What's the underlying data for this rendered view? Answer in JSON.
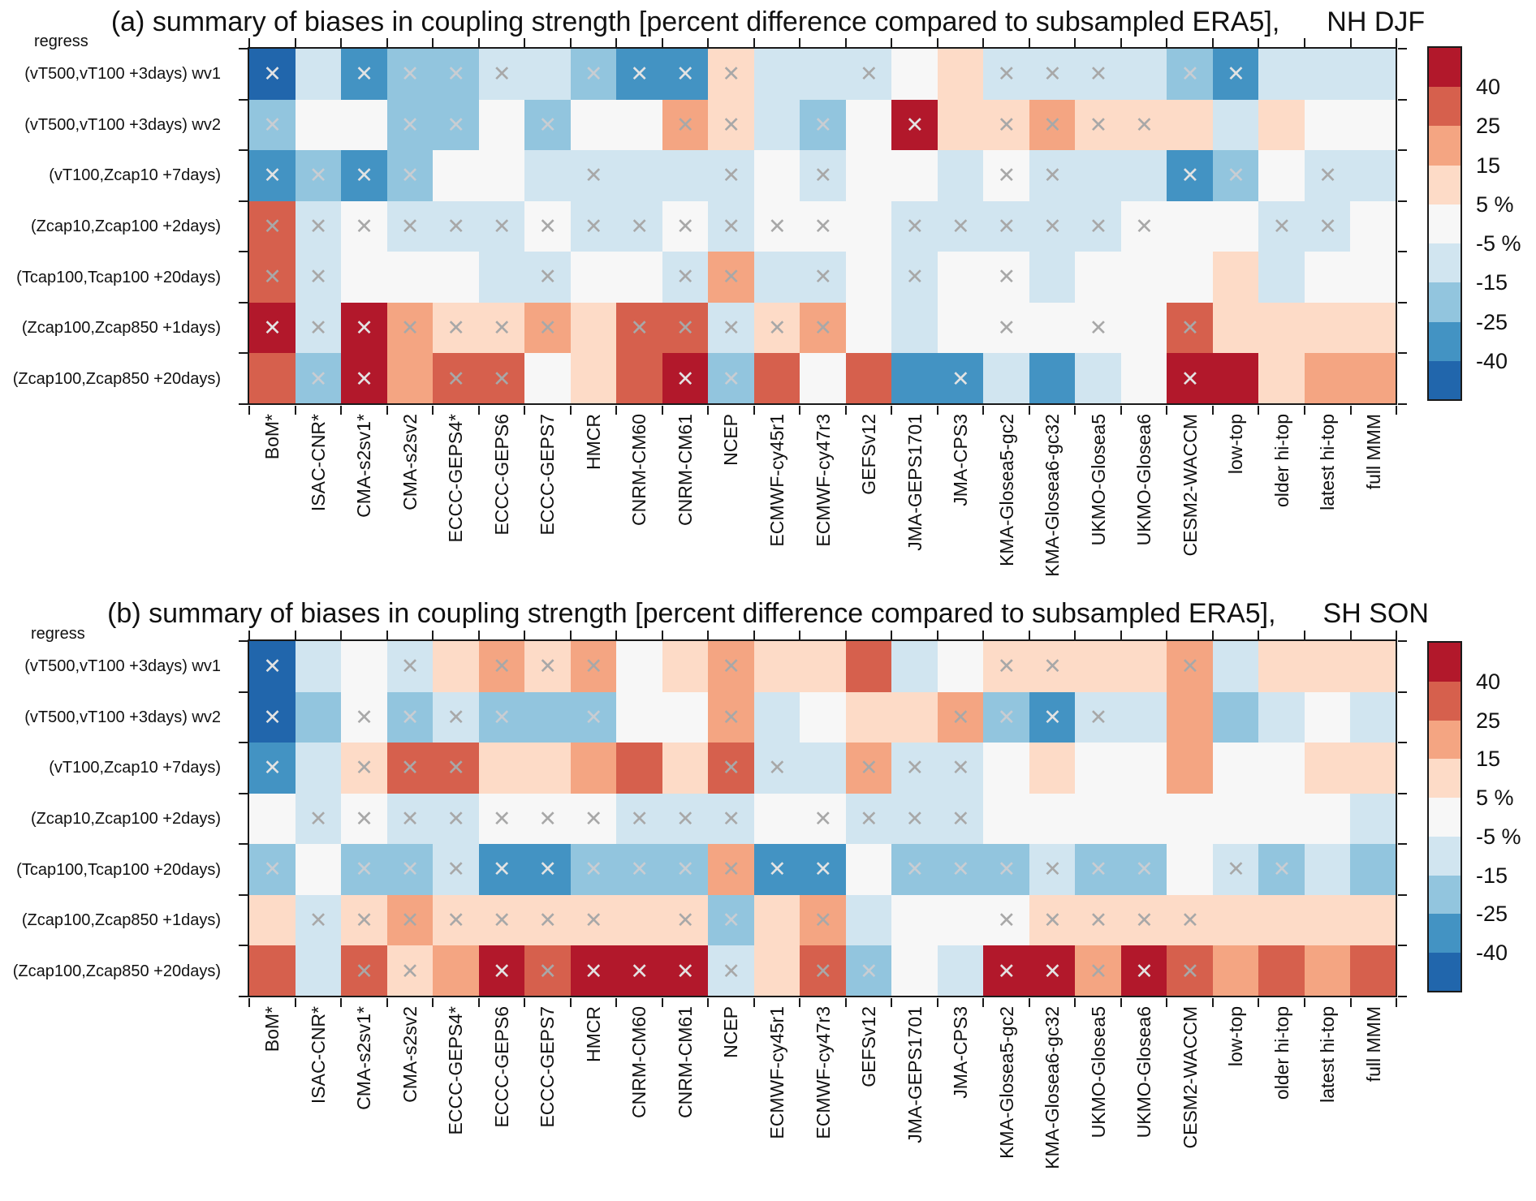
{
  "figure_note": "summary heatmaps of coupling-strength biases vs subsampled ERA5",
  "palette": {
    "R3": {
      "hex": "#b2182b",
      "range_percent": "> 40"
    },
    "R2": {
      "hex": "#d6604d",
      "range_percent": "25 to 40"
    },
    "R1": {
      "hex": "#f4a582",
      "range_percent": "15 to 25"
    },
    "O": {
      "hex": "#fddbc7",
      "range_percent": "5 to 15"
    },
    "W": {
      "hex": "#f7f7f7",
      "range_percent": "-5 to 5"
    },
    "B1": {
      "hex": "#d1e5f0",
      "range_percent": "-15 to -5"
    },
    "B2": {
      "hex": "#92c5de",
      "range_percent": "-25 to -15"
    },
    "B3": {
      "hex": "#4393c3",
      "range_percent": "-40 to -25"
    },
    "B4": {
      "hex": "#2166ac",
      "range_percent": "< -40"
    }
  },
  "colorbar": {
    "order_top_to_bottom": [
      "R3",
      "R2",
      "R1",
      "O",
      "W",
      "B1",
      "B2",
      "B3",
      "B4"
    ],
    "tick_labels": [
      "40",
      "25",
      "15",
      "5 %",
      "-5 %",
      "-15",
      "-25",
      "-40"
    ]
  },
  "marker": {
    "glyph": "✕",
    "meaning": "cell flagged with an X cross"
  },
  "chart_data": [
    {
      "type": "heatmap",
      "panel": "a",
      "title": "(a) summary of biases in coupling strength [percent difference compared to subsampled ERA5],",
      "season": "NH DJF",
      "corner_label": "regress",
      "row_labels": [
        "(vT500,vT100 +3days) wv1",
        "(vT500,vT100 +3days) wv2",
        "(vT100,Zcap10 +7days)",
        "(Zcap10,Zcap100 +2days)",
        "(Tcap100,Tcap100 +20days)",
        "(Zcap100,Zcap850 +1days)",
        "(Zcap100,Zcap850 +20days)"
      ],
      "col_labels": [
        "BoM*",
        "ISAC-CNR*",
        "CMA-s2sv1*",
        "CMA-s2sv2",
        "ECCC-GEPS4*",
        "ECCC-GEPS6",
        "ECCC-GEPS7",
        "HMCR",
        "CNRM-CM60",
        "CNRM-CM61",
        "NCEP",
        "ECMWF-cy45r1",
        "ECMWF-cy47r3",
        "GEFSv12",
        "JMA-GEPS1701",
        "JMA-CPS3",
        "KMA-Glosea5-gc2",
        "KMA-Glosea6-gc32",
        "UKMO-Glosea5",
        "UKMO-Glosea6",
        "CESM2-WACCM",
        "low-top",
        "older hi-top",
        "latest hi-top",
        "full MMM"
      ],
      "cell_encoding": "color level code from palette; trailing X means cross marker drawn",
      "cells": [
        [
          "B4X",
          "B1",
          "B3X",
          "B2X",
          "B2X",
          "B1X",
          "B1",
          "B2X",
          "B3X",
          "B3X",
          "OX",
          "B1",
          "B1",
          "B1X",
          "W",
          "O",
          "B1X",
          "B1X",
          "B1X",
          "B1",
          "B2X",
          "B3X",
          "B1",
          "B1",
          "B1"
        ],
        [
          "B2X",
          "W",
          "W",
          "B2X",
          "B2X",
          "W",
          "B2X",
          "W",
          "W",
          "R1X",
          "OX",
          "B1",
          "B2X",
          "W",
          "R3X",
          "O",
          "OX",
          "R1X",
          "OX",
          "OX",
          "O",
          "B1",
          "O",
          "W",
          "W"
        ],
        [
          "B3X",
          "B2X",
          "B3X",
          "B2X",
          "W",
          "W",
          "B1",
          "B1X",
          "B1",
          "B1",
          "B1X",
          "W",
          "B1X",
          "W",
          "W",
          "B1",
          "WX",
          "B1X",
          "B1",
          "B1",
          "B3X",
          "B2X",
          "W",
          "B1X",
          "B1"
        ],
        [
          "R2X",
          "B1X",
          "WX",
          "B1X",
          "B1X",
          "B1X",
          "WX",
          "B1X",
          "B1X",
          "WX",
          "B1X",
          "WX",
          "WX",
          "W",
          "B1X",
          "B1X",
          "B1X",
          "B1X",
          "B1X",
          "WX",
          "W",
          "W",
          "B1X",
          "B1X",
          "W"
        ],
        [
          "R2X",
          "B1X",
          "W",
          "W",
          "W",
          "B1",
          "B1X",
          "W",
          "W",
          "B1X",
          "R1X",
          "B1",
          "B1X",
          "W",
          "B1X",
          "W",
          "WX",
          "B1",
          "W",
          "W",
          "W",
          "O",
          "B1",
          "W",
          "W"
        ],
        [
          "R3X",
          "B1X",
          "R3X",
          "R1X",
          "OX",
          "OX",
          "R1X",
          "O",
          "R2X",
          "R2X",
          "B1X",
          "OX",
          "R1X",
          "W",
          "B1",
          "W",
          "WX",
          "W",
          "WX",
          "W",
          "R2X",
          "O",
          "O",
          "O",
          "O"
        ],
        [
          "R2",
          "B2X",
          "R3X",
          "R1",
          "R2X",
          "R2X",
          "W",
          "O",
          "R2",
          "R3X",
          "B2X",
          "R2",
          "W",
          "R2",
          "B3",
          "B3X",
          "B1",
          "B3",
          "B1",
          "W",
          "R3X",
          "R3",
          "O",
          "R1",
          "R1"
        ]
      ]
    },
    {
      "type": "heatmap",
      "panel": "b",
      "title": "(b) summary of biases in coupling strength [percent difference compared to subsampled ERA5],",
      "season": "SH SON",
      "corner_label": "regress",
      "row_labels": [
        "(vT500,vT100 +3days) wv1",
        "(vT500,vT100 +3days) wv2",
        "(vT100,Zcap10 +7days)",
        "(Zcap10,Zcap100 +2days)",
        "(Tcap100,Tcap100 +20days)",
        "(Zcap100,Zcap850 +1days)",
        "(Zcap100,Zcap850 +20days)"
      ],
      "col_labels": [
        "BoM*",
        "ISAC-CNR*",
        "CMA-s2sv1*",
        "CMA-s2sv2",
        "ECCC-GEPS4*",
        "ECCC-GEPS6",
        "ECCC-GEPS7",
        "HMCR",
        "CNRM-CM60",
        "CNRM-CM61",
        "NCEP",
        "ECMWF-cy45r1",
        "ECMWF-cy47r3",
        "GEFSv12",
        "JMA-GEPS1701",
        "JMA-CPS3",
        "KMA-Glosea5-gc2",
        "KMA-Glosea6-gc32",
        "UKMO-Glosea5",
        "UKMO-Glosea6",
        "CESM2-WACCM",
        "low-top",
        "older hi-top",
        "latest hi-top",
        "full MMM"
      ],
      "cell_encoding": "color level code from palette; trailing X means cross marker drawn",
      "cells": [
        [
          "B4X",
          "B1",
          "W",
          "B1X",
          "O",
          "R1X",
          "OX",
          "R1X",
          "W",
          "O",
          "R1X",
          "O",
          "O",
          "R2",
          "B1",
          "W",
          "OX",
          "OX",
          "O",
          "O",
          "R1X",
          "B1",
          "O",
          "O",
          "O"
        ],
        [
          "B4X",
          "B2",
          "WX",
          "B2X",
          "B1X",
          "B2X",
          "B2",
          "B2X",
          "W",
          "W",
          "R1X",
          "B1",
          "W",
          "O",
          "O",
          "R1X",
          "B2X",
          "B3X",
          "B1X",
          "B1",
          "R1",
          "B2",
          "B1",
          "W",
          "B1"
        ],
        [
          "B3X",
          "B1",
          "OX",
          "R2X",
          "R2X",
          "O",
          "O",
          "R1",
          "R2",
          "O",
          "R2X",
          "B1X",
          "B1",
          "R1X",
          "B1X",
          "B1X",
          "W",
          "O",
          "W",
          "W",
          "R1",
          "W",
          "W",
          "O",
          "O"
        ],
        [
          "W",
          "B1X",
          "WX",
          "B1X",
          "B1X",
          "WX",
          "WX",
          "WX",
          "B1X",
          "B1X",
          "B1X",
          "W",
          "WX",
          "B1X",
          "B1X",
          "B1X",
          "W",
          "W",
          "W",
          "W",
          "W",
          "W",
          "W",
          "W",
          "B1"
        ],
        [
          "B2X",
          "W",
          "B2X",
          "B2X",
          "B1X",
          "B3X",
          "B3X",
          "B2X",
          "B2X",
          "B2X",
          "R1X",
          "B3X",
          "B3X",
          "W",
          "B2X",
          "B2X",
          "B2X",
          "B1X",
          "B2X",
          "B2X",
          "W",
          "B1X",
          "B2X",
          "B1",
          "B2"
        ],
        [
          "O",
          "B1X",
          "OX",
          "R1X",
          "OX",
          "OX",
          "OX",
          "OX",
          "O",
          "OX",
          "B2X",
          "O",
          "R1X",
          "B1",
          "W",
          "W",
          "WX",
          "OX",
          "OX",
          "OX",
          "OX",
          "O",
          "O",
          "O",
          "O"
        ],
        [
          "R2",
          "B1",
          "R2X",
          "OX",
          "R1",
          "R3X",
          "R2X",
          "R3X",
          "R3X",
          "R3X",
          "B1X",
          "O",
          "R2X",
          "B2X",
          "W",
          "B1",
          "R3X",
          "R3X",
          "R1X",
          "R3X",
          "R2X",
          "R1",
          "R2",
          "R1",
          "R2"
        ]
      ]
    }
  ]
}
